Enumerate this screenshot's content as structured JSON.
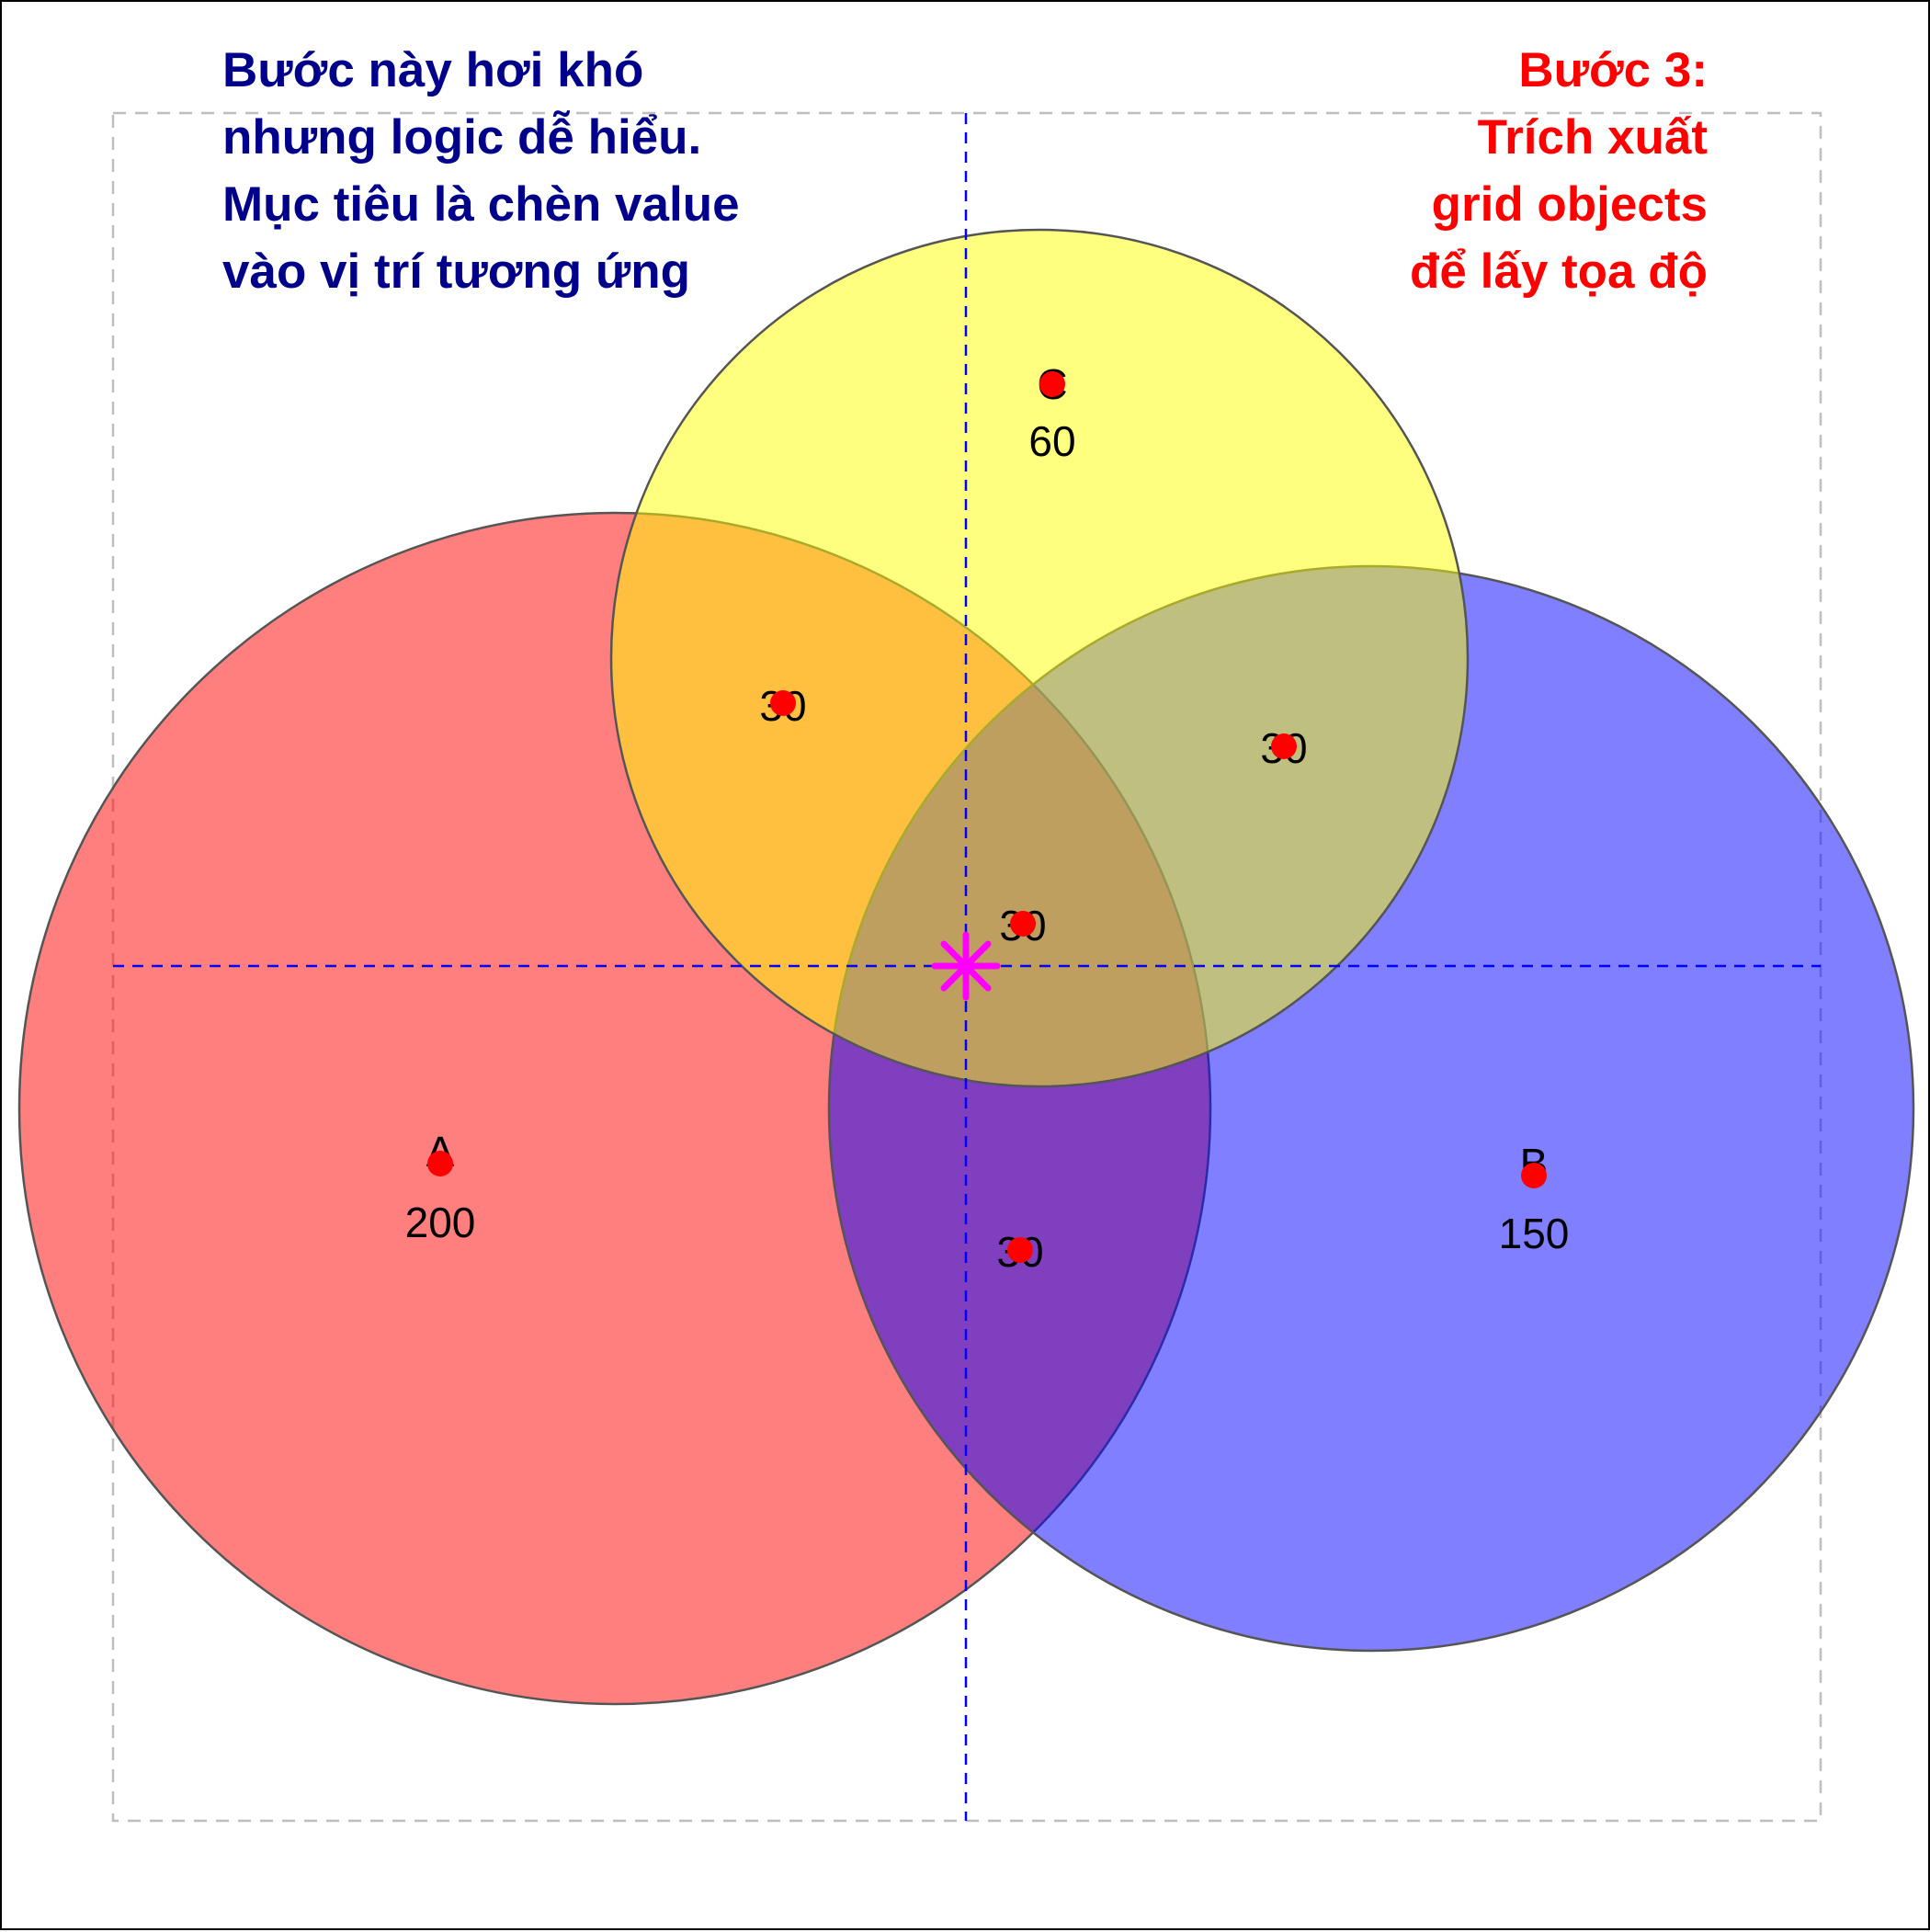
{
  "notes": {
    "left": {
      "color": "#00008B",
      "lines": [
        "Bước này hơi khó",
        "nhưng logic dễ hiểu.",
        "Mục tiêu là chèn value",
        "vào vị trí tương ứng"
      ]
    },
    "right": {
      "color": "#FF0000",
      "lines": [
        "Bước 3:",
        "Trích xuất",
        "grid objects",
        "để lấy tọa độ"
      ]
    }
  },
  "sets": [
    {
      "id": "A",
      "label": "A",
      "value": "200",
      "fill": "#FF0000"
    },
    {
      "id": "B",
      "label": "B",
      "value": "150",
      "fill": "#0000FF"
    },
    {
      "id": "C",
      "label": "C",
      "value": "60",
      "fill": "#FFFF00"
    }
  ],
  "intersections": [
    {
      "id": "AC",
      "value": "30"
    },
    {
      "id": "BC",
      "value": "30"
    },
    {
      "id": "ABC",
      "value": "30"
    },
    {
      "id": "AB",
      "value": "30"
    }
  ],
  "colors": {
    "marker": "#FF0000",
    "center_marker": "#FF00FF",
    "guide_lines": "#0000FF",
    "frame": "#BEBEBE",
    "circle_stroke": "#555555"
  },
  "center_marker_icon": "asterisk-icon"
}
